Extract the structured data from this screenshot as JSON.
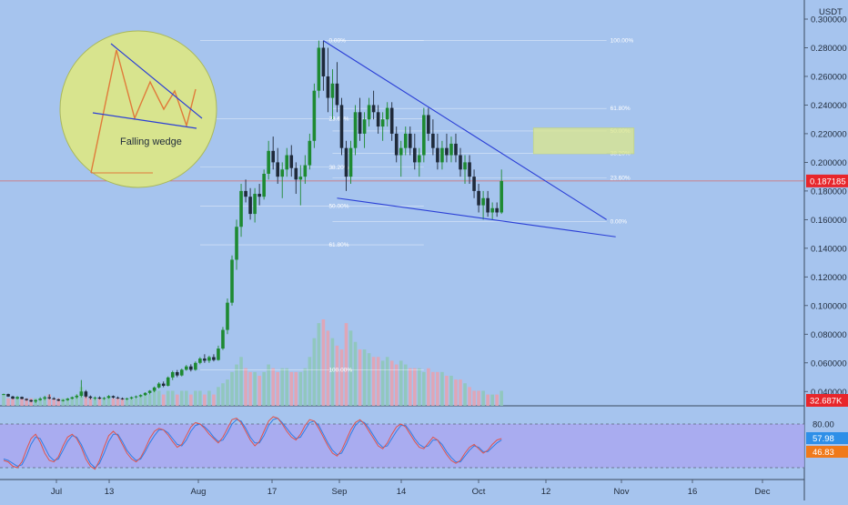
{
  "chart_data": {
    "type": "candlestick",
    "currency": "USDT",
    "price_axis": {
      "min": 0.03,
      "max": 0.3,
      "ticks": [
        "0.300000",
        "0.280000",
        "0.260000",
        "0.240000",
        "0.220000",
        "0.200000",
        "0.180000",
        "0.160000",
        "0.140000",
        "0.120000",
        "0.100000",
        "0.080000",
        "0.060000",
        "0.040000"
      ],
      "tick_values": [
        0.3,
        0.28,
        0.26,
        0.24,
        0.22,
        0.2,
        0.18,
        0.16,
        0.14,
        0.12,
        0.1,
        0.08,
        0.06,
        0.04
      ]
    },
    "time_axis": {
      "labels": [
        "Jul",
        "13",
        "Aug",
        "17",
        "Sep",
        "14",
        "Oct",
        "12",
        "Nov",
        "16",
        "Dec"
      ]
    },
    "last_price": "0.187185",
    "volume_label": "32.687K",
    "colors": {
      "up": "#1e8a32",
      "down": "#1f2a3a",
      "wedge": "#2b3fd6",
      "price_line": "#e0544c",
      "rsi_line": "#e0544c",
      "stoch_line": "#2e7ee6",
      "oscillator_band": "#a9a8f0",
      "zone": "#dde88a",
      "inset_circle": "#d8e48e"
    },
    "price_candles": [
      [
        0.038,
        0.0385,
        0.0375,
        0.0382
      ],
      [
        0.0382,
        0.0385,
        0.0362,
        0.0365
      ],
      [
        0.0365,
        0.037,
        0.0345,
        0.035
      ],
      [
        0.035,
        0.0368,
        0.0345,
        0.0362
      ],
      [
        0.0362,
        0.0365,
        0.0345,
        0.0348
      ],
      [
        0.0348,
        0.0352,
        0.0335,
        0.034
      ],
      [
        0.034,
        0.0345,
        0.0325,
        0.033
      ],
      [
        0.033,
        0.0345,
        0.032,
        0.034
      ],
      [
        0.034,
        0.036,
        0.0335,
        0.035
      ],
      [
        0.035,
        0.037,
        0.034,
        0.036
      ],
      [
        0.036,
        0.038,
        0.0345,
        0.0352
      ],
      [
        0.0352,
        0.036,
        0.0342,
        0.0345
      ],
      [
        0.0345,
        0.035,
        0.0332,
        0.0336
      ],
      [
        0.0336,
        0.0345,
        0.033,
        0.034
      ],
      [
        0.034,
        0.0355,
        0.0335,
        0.035
      ],
      [
        0.035,
        0.0365,
        0.0345,
        0.036
      ],
      [
        0.036,
        0.038,
        0.035,
        0.037
      ],
      [
        0.037,
        0.048,
        0.036,
        0.04
      ],
      [
        0.04,
        0.041,
        0.0355,
        0.0365
      ],
      [
        0.0365,
        0.0372,
        0.0345,
        0.0355
      ],
      [
        0.0355,
        0.0365,
        0.0342,
        0.0358
      ],
      [
        0.0358,
        0.0366,
        0.0345,
        0.035
      ],
      [
        0.035,
        0.0362,
        0.0342,
        0.0355
      ],
      [
        0.0355,
        0.0375,
        0.035,
        0.0368
      ],
      [
        0.0368,
        0.0372,
        0.0352,
        0.0358
      ],
      [
        0.0358,
        0.0365,
        0.0348,
        0.0352
      ],
      [
        0.0352,
        0.0358,
        0.0342,
        0.0348
      ],
      [
        0.0348,
        0.0356,
        0.034,
        0.0352
      ],
      [
        0.0352,
        0.0365,
        0.0345,
        0.036
      ],
      [
        0.036,
        0.0372,
        0.0352,
        0.0366
      ],
      [
        0.0366,
        0.038,
        0.036,
        0.0375
      ],
      [
        0.0375,
        0.0395,
        0.037,
        0.039
      ],
      [
        0.039,
        0.041,
        0.038,
        0.0405
      ],
      [
        0.0405,
        0.0435,
        0.0395,
        0.0428
      ],
      [
        0.0428,
        0.0465,
        0.042,
        0.0455
      ],
      [
        0.0455,
        0.047,
        0.043,
        0.044
      ],
      [
        0.044,
        0.0505,
        0.0435,
        0.0498
      ],
      [
        0.0498,
        0.0545,
        0.048,
        0.0535
      ],
      [
        0.0535,
        0.055,
        0.05,
        0.0512
      ],
      [
        0.0512,
        0.056,
        0.0505,
        0.0552
      ],
      [
        0.0552,
        0.0585,
        0.0545,
        0.0575
      ],
      [
        0.0575,
        0.059,
        0.054,
        0.0552
      ],
      [
        0.0552,
        0.061,
        0.0545,
        0.06
      ],
      [
        0.06,
        0.064,
        0.059,
        0.063
      ],
      [
        0.063,
        0.066,
        0.06,
        0.0615
      ],
      [
        0.0615,
        0.065,
        0.06,
        0.064
      ],
      [
        0.064,
        0.066,
        0.061,
        0.062
      ],
      [
        0.062,
        0.072,
        0.0615,
        0.07
      ],
      [
        0.07,
        0.085,
        0.069,
        0.083
      ],
      [
        0.083,
        0.105,
        0.08,
        0.102
      ],
      [
        0.102,
        0.135,
        0.1,
        0.132
      ],
      [
        0.132,
        0.16,
        0.125,
        0.155
      ],
      [
        0.155,
        0.185,
        0.148,
        0.18
      ],
      [
        0.18,
        0.188,
        0.172,
        0.176
      ],
      [
        0.176,
        0.182,
        0.16,
        0.164
      ],
      [
        0.164,
        0.182,
        0.158,
        0.178
      ],
      [
        0.178,
        0.185,
        0.17,
        0.176
      ],
      [
        0.176,
        0.195,
        0.174,
        0.192
      ],
      [
        0.192,
        0.215,
        0.188,
        0.208
      ],
      [
        0.208,
        0.218,
        0.195,
        0.2
      ],
      [
        0.2,
        0.21,
        0.185,
        0.19
      ],
      [
        0.19,
        0.2,
        0.175,
        0.195
      ],
      [
        0.195,
        0.21,
        0.19,
        0.205
      ],
      [
        0.205,
        0.212,
        0.19,
        0.196
      ],
      [
        0.196,
        0.2,
        0.178,
        0.188
      ],
      [
        0.188,
        0.198,
        0.17,
        0.19
      ],
      [
        0.19,
        0.205,
        0.185,
        0.198
      ],
      [
        0.198,
        0.22,
        0.195,
        0.215
      ],
      [
        0.215,
        0.255,
        0.21,
        0.25
      ],
      [
        0.25,
        0.285,
        0.245,
        0.28
      ],
      [
        0.28,
        0.285,
        0.25,
        0.26
      ],
      [
        0.26,
        0.28,
        0.235,
        0.245
      ],
      [
        0.245,
        0.265,
        0.23,
        0.255
      ],
      [
        0.255,
        0.27,
        0.235,
        0.24
      ],
      [
        0.24,
        0.245,
        0.205,
        0.21
      ],
      [
        0.21,
        0.215,
        0.18,
        0.19
      ],
      [
        0.19,
        0.215,
        0.185,
        0.21
      ],
      [
        0.21,
        0.24,
        0.205,
        0.235
      ],
      [
        0.235,
        0.245,
        0.215,
        0.22
      ],
      [
        0.22,
        0.235,
        0.21,
        0.23
      ],
      [
        0.23,
        0.245,
        0.225,
        0.24
      ],
      [
        0.24,
        0.25,
        0.23,
        0.235
      ],
      [
        0.235,
        0.24,
        0.22,
        0.225
      ],
      [
        0.225,
        0.235,
        0.215,
        0.23
      ],
      [
        0.23,
        0.242,
        0.225,
        0.238
      ],
      [
        0.238,
        0.242,
        0.215,
        0.22
      ],
      [
        0.22,
        0.225,
        0.2,
        0.205
      ],
      [
        0.205,
        0.215,
        0.19,
        0.21
      ],
      [
        0.21,
        0.225,
        0.205,
        0.22
      ],
      [
        0.22,
        0.225,
        0.205,
        0.21
      ],
      [
        0.21,
        0.22,
        0.195,
        0.2
      ],
      [
        0.2,
        0.21,
        0.19,
        0.205
      ],
      [
        0.205,
        0.238,
        0.2,
        0.233
      ],
      [
        0.233,
        0.238,
        0.215,
        0.22
      ],
      [
        0.22,
        0.23,
        0.205,
        0.21
      ],
      [
        0.21,
        0.22,
        0.195,
        0.2
      ],
      [
        0.2,
        0.215,
        0.195,
        0.21
      ],
      [
        0.21,
        0.22,
        0.2,
        0.205
      ],
      [
        0.205,
        0.218,
        0.2,
        0.213
      ],
      [
        0.213,
        0.22,
        0.2,
        0.205
      ],
      [
        0.205,
        0.21,
        0.19,
        0.195
      ],
      [
        0.195,
        0.205,
        0.185,
        0.2
      ],
      [
        0.2,
        0.205,
        0.185,
        0.19
      ],
      [
        0.19,
        0.195,
        0.175,
        0.18
      ],
      [
        0.18,
        0.185,
        0.165,
        0.17
      ],
      [
        0.17,
        0.18,
        0.16,
        0.175
      ],
      [
        0.175,
        0.18,
        0.162,
        0.165
      ],
      [
        0.165,
        0.172,
        0.16,
        0.168
      ],
      [
        0.168,
        0.172,
        0.162,
        0.165
      ],
      [
        0.165,
        0.195,
        0.164,
        0.187
      ]
    ],
    "volumes": [
      3,
      2,
      2,
      2,
      2,
      2,
      2,
      2,
      2,
      2,
      3,
      2,
      2,
      2,
      2,
      2,
      3,
      5,
      3,
      2,
      2,
      2,
      2,
      2,
      2,
      2,
      2,
      2,
      2,
      2,
      3,
      3,
      3,
      4,
      4,
      3,
      4,
      4,
      3,
      4,
      4,
      3,
      4,
      4,
      3,
      4,
      3,
      5,
      6,
      7,
      9,
      11,
      13,
      10,
      9,
      9,
      8,
      9,
      11,
      10,
      9,
      10,
      10,
      9,
      9,
      9,
      10,
      13,
      18,
      22,
      23,
      20,
      18,
      16,
      15,
      22,
      20,
      17,
      15,
      15,
      14,
      13,
      13,
      12,
      13,
      12,
      11,
      12,
      11,
      10,
      10,
      10,
      9,
      10,
      9,
      9,
      9,
      8,
      8,
      7,
      7,
      6,
      5,
      4,
      4,
      4,
      3,
      3,
      3,
      4
    ],
    "oscillator": {
      "levels": [
        80,
        20
      ],
      "upper_label": "80.00",
      "value_a": "57.98",
      "value_b": "46.83",
      "series_red": [
        30,
        28,
        22,
        20,
        28,
        45,
        60,
        66,
        55,
        40,
        30,
        28,
        35,
        50,
        62,
        66,
        60,
        48,
        32,
        22,
        18,
        30,
        48,
        64,
        70,
        64,
        52,
        40,
        32,
        28,
        34,
        46,
        60,
        70,
        74,
        72,
        65,
        56,
        48,
        52,
        64,
        76,
        82,
        80,
        74,
        66,
        60,
        54,
        62,
        74,
        86,
        88,
        82,
        70,
        58,
        50,
        56,
        70,
        84,
        90,
        88,
        80,
        70,
        62,
        58,
        66,
        78,
        86,
        84,
        74,
        62,
        50,
        40,
        36,
        44,
        58,
        72,
        82,
        86,
        80,
        70,
        60,
        50,
        46,
        54,
        66,
        76,
        80,
        76,
        66,
        56,
        48,
        46,
        54,
        62,
        58,
        48,
        38,
        30,
        26,
        30,
        40,
        48,
        52,
        46,
        40,
        44,
        52,
        58,
        60
      ],
      "series_blue": [
        32,
        30,
        26,
        22,
        24,
        36,
        52,
        62,
        60,
        48,
        36,
        30,
        32,
        44,
        56,
        64,
        62,
        52,
        38,
        26,
        20,
        26,
        40,
        56,
        66,
        66,
        56,
        44,
        36,
        30,
        32,
        42,
        54,
        64,
        72,
        72,
        68,
        60,
        52,
        50,
        58,
        70,
        78,
        80,
        76,
        70,
        62,
        56,
        58,
        68,
        80,
        86,
        84,
        74,
        62,
        54,
        54,
        64,
        78,
        86,
        88,
        82,
        74,
        66,
        60,
        62,
        72,
        82,
        84,
        78,
        66,
        54,
        44,
        38,
        40,
        52,
        66,
        78,
        84,
        82,
        74,
        64,
        54,
        48,
        50,
        60,
        70,
        78,
        78,
        70,
        60,
        52,
        48,
        50,
        58,
        58,
        52,
        42,
        34,
        28,
        28,
        36,
        44,
        50,
        48,
        42,
        42,
        48,
        54,
        58
      ]
    },
    "fibonacci_left": [
      "0.00%",
      "23.60%",
      "38.20%",
      "50.00%",
      "61.80%",
      "100.00%"
    ],
    "fibonacci_right": [
      "100.00%",
      "61.80%",
      "50.00%",
      "38.20%",
      "23.60%",
      "0.00%"
    ],
    "fib_left_values": [
      0.285,
      0.2303,
      0.1966,
      0.1695,
      0.1424,
      0.055
    ],
    "fib_right_values": [
      0.285,
      0.2376,
      0.2219,
      0.2062,
      0.1893,
      0.1585
    ],
    "wedge": {
      "upper": [
        [
          70,
          0.285
        ],
        [
          132,
          0.16
        ]
      ],
      "lower": [
        [
          73,
          0.175
        ],
        [
          134,
          0.148
        ]
      ]
    },
    "target_zone": {
      "from_x": 116,
      "to_x": 138,
      "low": 0.206,
      "high": 0.224
    },
    "inset": {
      "caption": "Falling wedge"
    }
  }
}
